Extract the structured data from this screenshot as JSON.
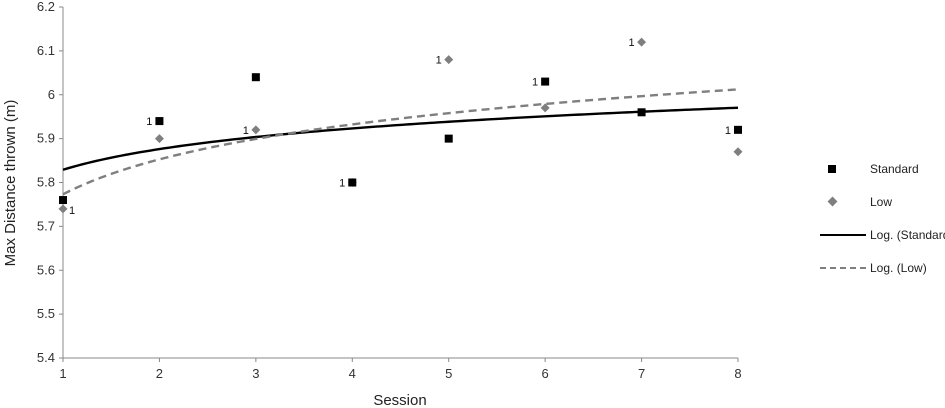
{
  "chart_data": {
    "type": "scatter",
    "xlabel": "Session",
    "ylabel": "Max Distance thrown (m)",
    "xlim": [
      1,
      8
    ],
    "ylim": [
      5.4,
      6.2
    ],
    "x_ticks": [
      "1",
      "2",
      "3",
      "4",
      "5",
      "6",
      "7",
      "8"
    ],
    "y_ticks": [
      "5.4",
      "5.5",
      "5.6",
      "5.7",
      "5.8",
      "5.9",
      "6",
      "6.1",
      "6.2"
    ],
    "grid": false,
    "legend_position": "right",
    "series": [
      {
        "name": "Standard",
        "marker": "square",
        "color": "#000000",
        "x": [
          1,
          2,
          3,
          4,
          5,
          6,
          7,
          8
        ],
        "y": [
          5.76,
          5.94,
          6.04,
          5.8,
          5.9,
          6.03,
          5.96,
          5.92
        ]
      },
      {
        "name": "Low",
        "marker": "diamond",
        "color": "#7f7f7f",
        "x": [
          1,
          2,
          3,
          4,
          5,
          6,
          7,
          8
        ],
        "y": [
          5.74,
          5.9,
          5.92,
          5.8,
          6.08,
          5.97,
          6.12,
          5.87
        ]
      }
    ],
    "trendlines": [
      {
        "name": "Log. (Standard)",
        "type": "log",
        "style": "solid",
        "color": "#000000",
        "a": 5.829,
        "b": 0.068
      },
      {
        "name": "Log. (Low)",
        "type": "log",
        "style": "dashed",
        "color": "#7f7f7f",
        "a": 5.773,
        "b": 0.115
      }
    ],
    "annotations": [
      {
        "text": "1",
        "x": 1,
        "y": 5.74,
        "side": "right"
      },
      {
        "text": "1",
        "x": 2,
        "y": 5.94,
        "side": "left"
      },
      {
        "text": "1",
        "x": 3,
        "y": 5.92,
        "side": "left"
      },
      {
        "text": "1",
        "x": 4,
        "y": 5.8,
        "side": "left"
      },
      {
        "text": "1",
        "x": 5,
        "y": 6.08,
        "side": "left"
      },
      {
        "text": "1",
        "x": 6,
        "y": 6.03,
        "side": "left"
      },
      {
        "text": "1",
        "x": 7,
        "y": 6.12,
        "side": "left"
      },
      {
        "text": "1",
        "x": 8,
        "y": 5.92,
        "side": "left"
      }
    ]
  },
  "legend": {
    "items": [
      {
        "label": "Standard",
        "symbol": "square"
      },
      {
        "label": "Low",
        "symbol": "diamond"
      },
      {
        "label": "Log. (Standard)",
        "symbol": "solid-line"
      },
      {
        "label": "Log. (Low)",
        "symbol": "dashed-line"
      }
    ]
  }
}
